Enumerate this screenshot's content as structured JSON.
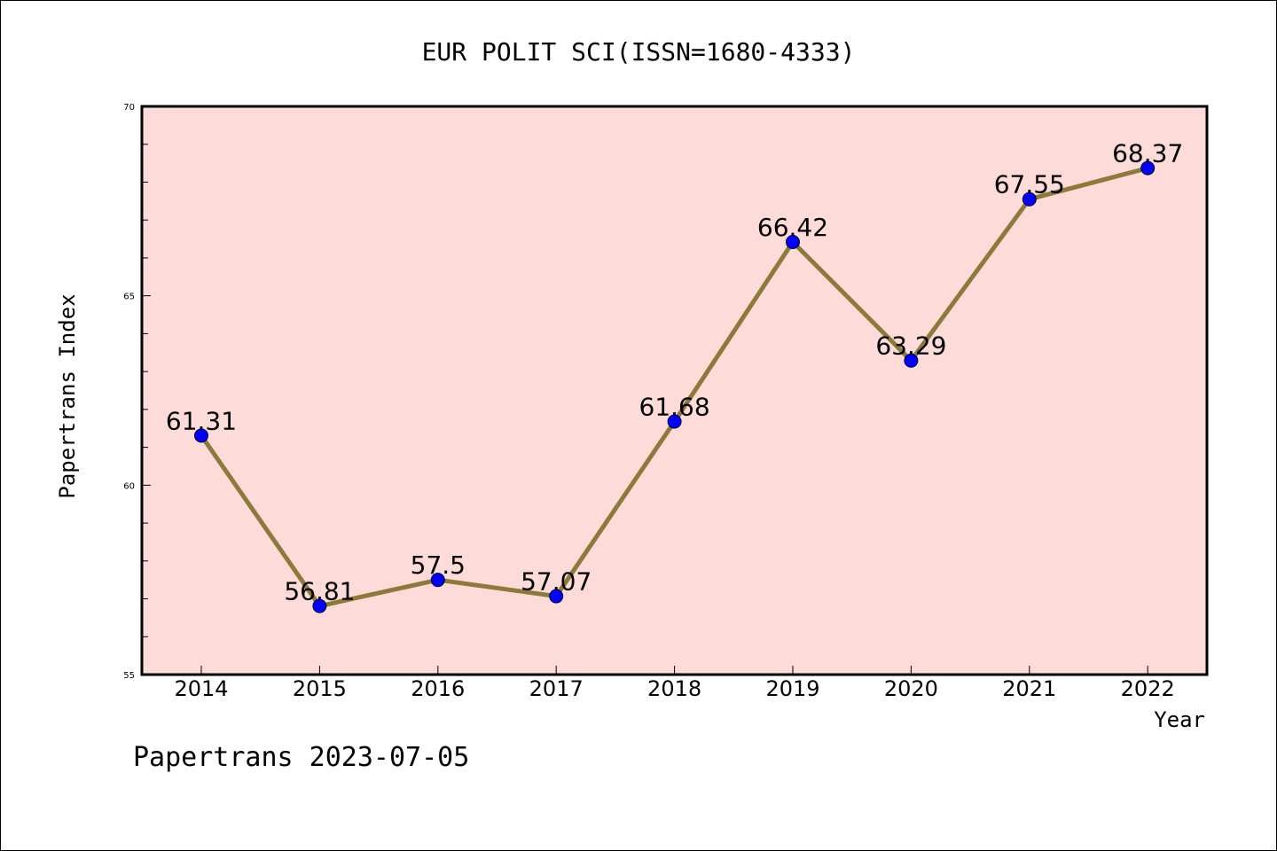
{
  "chart_data": {
    "type": "line",
    "title": "EUR POLIT SCI(ISSN=1680-4333)",
    "xlabel": "Year",
    "ylabel": "Papertrans Index",
    "footer": "Papertrans 2023-07-05",
    "ylim": [
      55,
      70
    ],
    "yticks_major": [
      55,
      60,
      65,
      70
    ],
    "y_minor_step": 1,
    "grid": false,
    "data_labels": true,
    "categories": [
      "2014",
      "2015",
      "2016",
      "2017",
      "2018",
      "2019",
      "2020",
      "2021",
      "2022"
    ],
    "values": [
      61.31,
      56.81,
      57.5,
      57.07,
      61.68,
      66.42,
      63.29,
      67.55,
      68.37
    ],
    "value_labels": [
      "61.31",
      "56.81",
      "57.5",
      "57.07",
      "61.68",
      "66.42",
      "63.29",
      "67.55",
      "68.37"
    ],
    "colors": {
      "plot_background": "#FDDBD9",
      "line": "#8B7A3A",
      "marker": "#0000FF",
      "axes": "#000000"
    }
  }
}
